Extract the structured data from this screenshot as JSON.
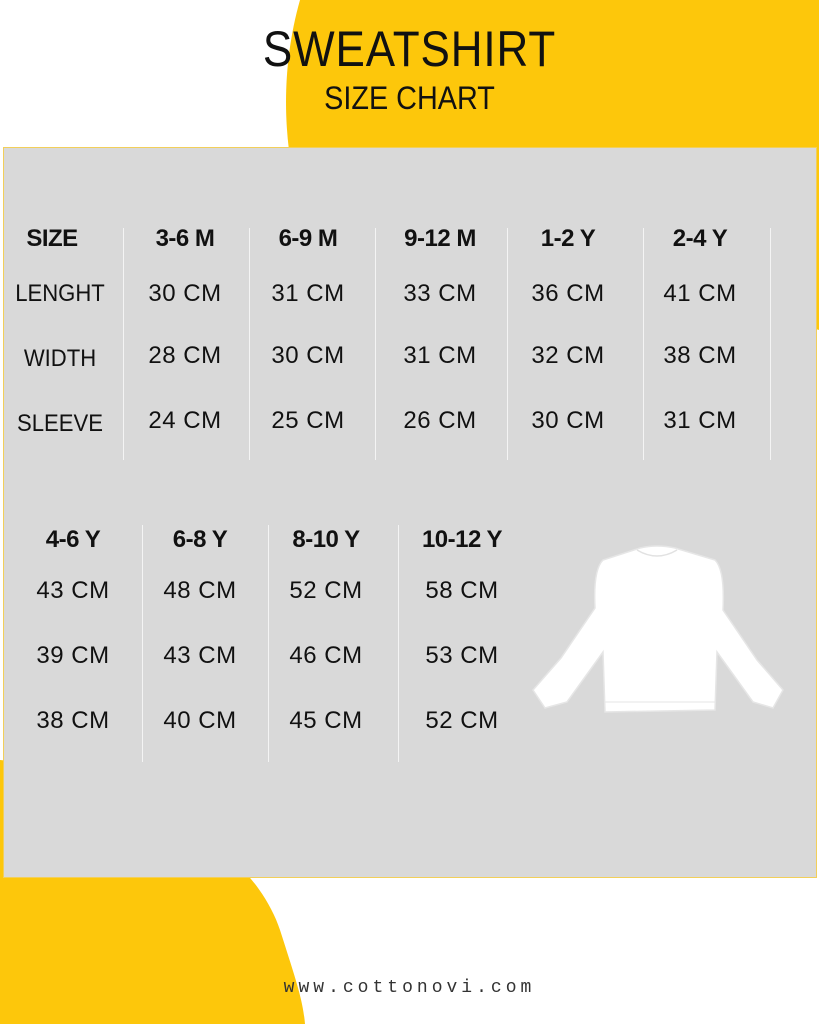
{
  "title": "SWEATSHIRT",
  "subtitle": "SIZE CHART",
  "colors": {
    "accent": "#fdc70b",
    "panel": "#d9d9d9"
  },
  "table1": {
    "size_label": "SIZE",
    "row_labels": [
      "LENGHT",
      "WIDTH",
      "SLEEVE"
    ],
    "columns": [
      {
        "size": "3-6 M",
        "values": [
          "30 CM",
          "28 CM",
          "24 CM"
        ]
      },
      {
        "size": "6-9 M",
        "values": [
          "31 CM",
          "30 CM",
          "25 CM"
        ]
      },
      {
        "size": "9-12 M",
        "values": [
          "33 CM",
          "31 CM",
          "26 CM"
        ]
      },
      {
        "size": "1-2 Y",
        "values": [
          "36 CM",
          "32 CM",
          "30 CM"
        ]
      },
      {
        "size": "2-4 Y",
        "values": [
          "41 CM",
          "38 CM",
          "31 CM"
        ]
      }
    ]
  },
  "table2": {
    "columns": [
      {
        "size": "4-6 Y",
        "values": [
          "43 CM",
          "39 CM",
          "38 CM"
        ]
      },
      {
        "size": "6-8 Y",
        "values": [
          "48 CM",
          "43 CM",
          "40 CM"
        ]
      },
      {
        "size": "8-10 Y",
        "values": [
          "52 CM",
          "46 CM",
          "45 CM"
        ]
      },
      {
        "size": "10-12 Y",
        "values": [
          "58 CM",
          "53 CM",
          "52 CM"
        ]
      }
    ]
  },
  "illustration": "sweatshirt-icon",
  "website": "www.cottonovi.com"
}
